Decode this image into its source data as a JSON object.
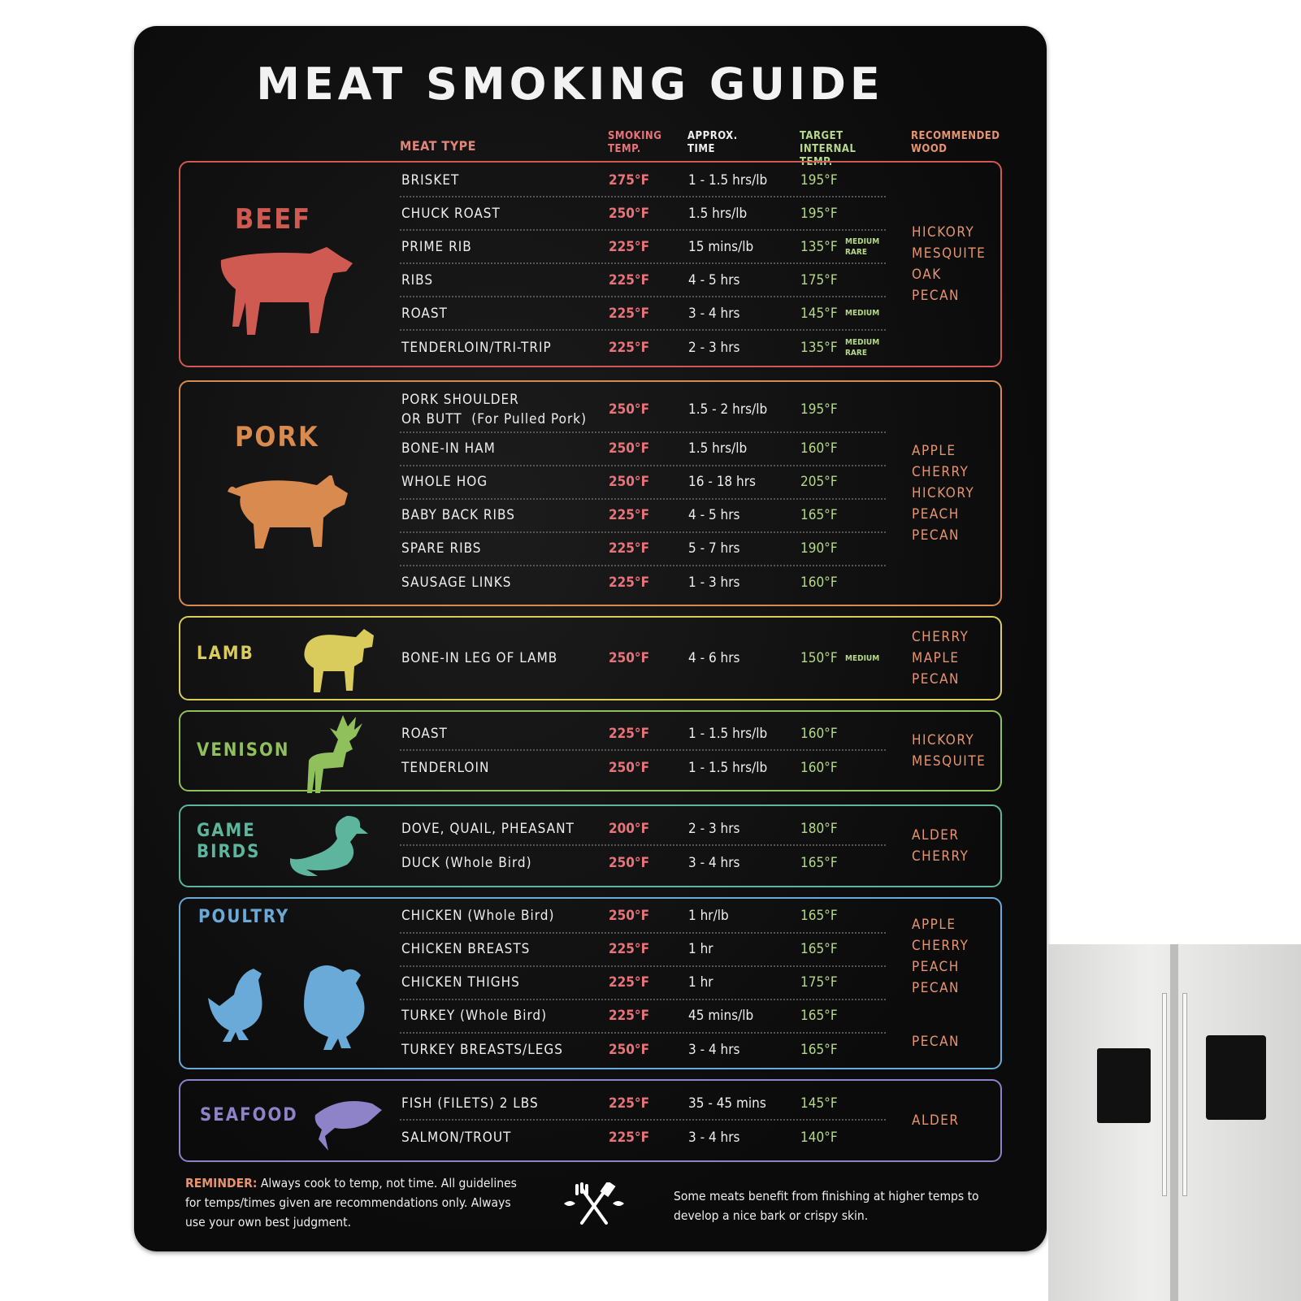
{
  "title": "MEAT SMOKING GUIDE",
  "headers": {
    "meat_type": "MEAT TYPE",
    "smoking_temp": "SMOKING TEMP.",
    "approx_time": "APPROX. TIME",
    "target_temp": "TARGET INTERNAL TEMP.",
    "wood": "RECOMMENDED WOOD"
  },
  "colors": {
    "beef": "#cf5a52",
    "pork": "#d98a4e",
    "lamb": "#d9cb5c",
    "venison": "#8fc05c",
    "game_birds": "#5db59d",
    "poultry": "#6aaad8",
    "seafood": "#8e82c8",
    "smoking_temp": "#e8747a",
    "target_temp": "#b6d98a",
    "wood": "#e7946e"
  },
  "sections": [
    {
      "id": "beef",
      "name": "BEEF",
      "animal": "cow-icon",
      "rows": [
        {
          "meat": "BRISKET",
          "smoke": "275°F",
          "time": "1 - 1.5 hrs/lb",
          "target": "195°F"
        },
        {
          "meat": "CHUCK ROAST",
          "smoke": "250°F",
          "time": "1.5 hrs/lb",
          "target": "195°F"
        },
        {
          "meat": "PRIME RIB",
          "smoke": "225°F",
          "time": "15 mins/lb",
          "target": "135°F",
          "note": "MEDIUM RARE"
        },
        {
          "meat": "RIBS",
          "smoke": "225°F",
          "time": "4 - 5 hrs",
          "target": "175°F"
        },
        {
          "meat": "ROAST",
          "smoke": "225°F",
          "time": "3 - 4 hrs",
          "target": "145°F",
          "note": "MEDIUM"
        },
        {
          "meat": "TENDERLOIN/TRI-TRIP",
          "smoke": "225°F",
          "time": "2 - 3 hrs",
          "target": "135°F",
          "note": "MEDIUM RARE"
        }
      ],
      "wood": [
        [
          "HICKORY",
          "MESQUITE",
          "OAK",
          "PECAN"
        ]
      ]
    },
    {
      "id": "pork",
      "name": "PORK",
      "animal": "pig-icon",
      "rows": [
        {
          "meat": "PORK SHOULDER\nOR BUTT  (For Pulled Pork)",
          "smoke": "250°F",
          "time": "1.5 - 2 hrs/lb",
          "target": "195°F"
        },
        {
          "meat": "BONE-IN HAM",
          "smoke": "250°F",
          "time": "1.5 hrs/lb",
          "target": "160°F"
        },
        {
          "meat": "WHOLE HOG",
          "smoke": "250°F",
          "time": "16 - 18 hrs",
          "target": "205°F"
        },
        {
          "meat": "BABY BACK RIBS",
          "smoke": "225°F",
          "time": "4 - 5 hrs",
          "target": "165°F"
        },
        {
          "meat": "SPARE RIBS",
          "smoke": "225°F",
          "time": "5 - 7 hrs",
          "target": "190°F"
        },
        {
          "meat": "SAUSAGE LINKS",
          "smoke": "225°F",
          "time": "1 - 3 hrs",
          "target": "160°F"
        }
      ],
      "wood": [
        [
          "APPLE",
          "CHERRY",
          "HICKORY",
          "PEACH",
          "PECAN"
        ]
      ]
    },
    {
      "id": "lamb",
      "name": "LAMB",
      "animal": "sheep-icon",
      "rows": [
        {
          "meat": "BONE-IN LEG OF LAMB",
          "smoke": "250°F",
          "time": "4 - 6 hrs",
          "target": "150°F",
          "note": "MEDIUM"
        }
      ],
      "wood": [
        [
          "CHERRY",
          "MAPLE",
          "PECAN"
        ]
      ]
    },
    {
      "id": "venison",
      "name": "VENISON",
      "animal": "deer-icon",
      "rows": [
        {
          "meat": "ROAST",
          "smoke": "225°F",
          "time": "1 - 1.5 hrs/lb",
          "target": "160°F"
        },
        {
          "meat": "TENDERLOIN",
          "smoke": "250°F",
          "time": "1 - 1.5 hrs/lb",
          "target": "160°F"
        }
      ],
      "wood": [
        [
          "HICKORY",
          "MESQUITE"
        ]
      ]
    },
    {
      "id": "game_birds",
      "name": "GAME\nBIRDS",
      "animal": "duck-icon",
      "rows": [
        {
          "meat": "DOVE, QUAIL, PHEASANT",
          "smoke": "200°F",
          "time": "2 - 3 hrs",
          "target": "180°F"
        },
        {
          "meat": "DUCK (Whole Bird)",
          "smoke": "250°F",
          "time": "3 - 4 hrs",
          "target": "165°F"
        }
      ],
      "wood": [
        [
          "ALDER",
          "CHERRY"
        ]
      ]
    },
    {
      "id": "poultry",
      "name": "POULTRY",
      "animal": "chicken-turkey-icon",
      "rows": [
        {
          "meat": "CHICKEN (Whole Bird)",
          "smoke": "250°F",
          "time": "1 hr/lb",
          "target": "165°F"
        },
        {
          "meat": "CHICKEN BREASTS",
          "smoke": "225°F",
          "time": "1 hr",
          "target": "165°F"
        },
        {
          "meat": "CHICKEN THIGHS",
          "smoke": "225°F",
          "time": "1 hr",
          "target": "175°F"
        },
        {
          "meat": "TURKEY (Whole Bird)",
          "smoke": "225°F",
          "time": "45 mins/lb",
          "target": "165°F"
        },
        {
          "meat": "TURKEY BREASTS/LEGS",
          "smoke": "250°F",
          "time": "3 - 4 hrs",
          "target": "165°F"
        }
      ],
      "wood": [
        [
          "APPLE",
          "CHERRY",
          "PEACH",
          "PECAN"
        ],
        [
          "PECAN"
        ]
      ]
    },
    {
      "id": "seafood",
      "name": "SEAFOOD",
      "animal": "fish-icon",
      "rows": [
        {
          "meat": "FISH (FILETS) 2 LBS",
          "smoke": "225°F",
          "time": "35 - 45 mins",
          "target": "145°F"
        },
        {
          "meat": "SALMON/TROUT",
          "smoke": "225°F",
          "time": "3 - 4 hrs",
          "target": "140°F"
        }
      ],
      "wood": [
        [
          "ALDER"
        ]
      ]
    }
  ],
  "footer": {
    "reminder_label": "REMINDER:",
    "reminder_text": " Always cook to temp, not time. All guidelines for temps/times given are recommendations only. Always use your own best judgment.",
    "right_text": "Some meats benefit from finishing at higher temps to develop a nice bark or crispy skin.",
    "icon": "crossed-fork-spatula-icon"
  }
}
